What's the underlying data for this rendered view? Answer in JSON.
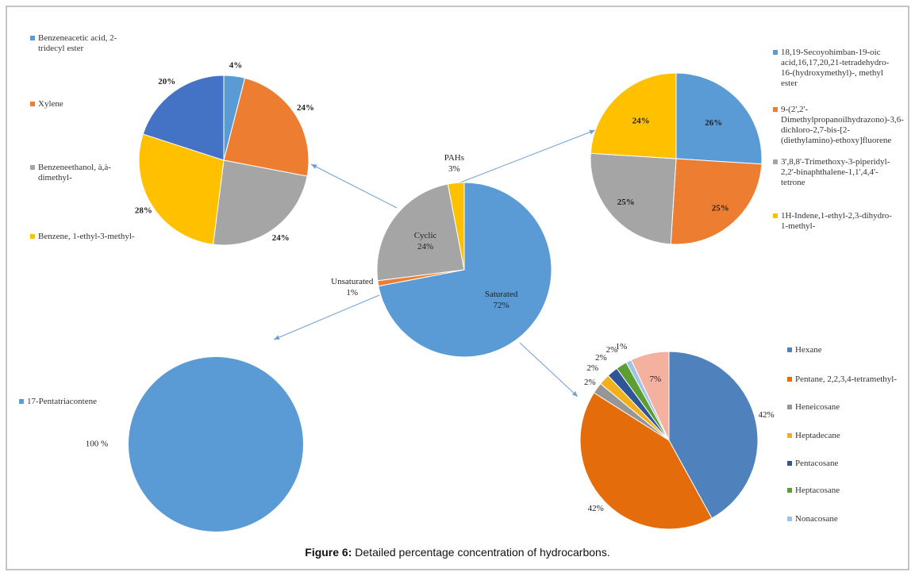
{
  "chart_data": [
    {
      "type": "pie",
      "categories": [
        "Benzeneacetic acid, 2-tridecyl ester",
        "Xylene",
        "Benzeneethanol, à,à-dimethyl-",
        "Benzene, 1-ethyl-3-methyl-",
        null
      ],
      "values": [
        4,
        24,
        24,
        28,
        20
      ],
      "value_labels": [
        "4%",
        "24%",
        "24%",
        "28%",
        "20%"
      ],
      "colors": [
        "#5b9bd5",
        "#ed7d31",
        "#a5a5a5",
        "#ffc000",
        "#4472c4"
      ]
    },
    {
      "type": "pie",
      "categories": [
        "Saturated",
        "Unsaturated",
        "Cyclic",
        "PAHs"
      ],
      "values": [
        72,
        1,
        24,
        3
      ],
      "value_labels": [
        "72%",
        "1%",
        "24%",
        "3%"
      ],
      "colors": [
        "#5b9bd5",
        "#ed7d31",
        "#a5a5a5",
        "#ffc000"
      ]
    },
    {
      "type": "pie",
      "categories": [
        "18,19-Secoyohimban-19-oic acid,16,17,20,21-tetradehydro-16-(hydroxymethyl)-, methyl ester",
        "9-(2',2'-Dimethylpropanoilhydrazono)-3,6-dichloro-2,7-bis-[2-(diethylamino)-ethoxy]fluorene",
        "3',8,8'-Trimethoxy-3-piperidyl-2,2'-binaphthalene-1,1',4,4'-tetrone",
        "1H-Indene,1-ethyl-2,3-dihydro-1-methyl-"
      ],
      "values": [
        26,
        25,
        25,
        24
      ],
      "value_labels": [
        "26%",
        "25%",
        "25%",
        "24%"
      ],
      "colors": [
        "#5b9bd5",
        "#ed7d31",
        "#a5a5a5",
        "#ffc000"
      ]
    },
    {
      "type": "pie",
      "categories": [
        "17-Pentatriacontene"
      ],
      "values": [
        100
      ],
      "value_labels": [
        "100 %"
      ],
      "colors": [
        "#5b9bd5"
      ]
    },
    {
      "type": "pie",
      "categories": [
        "Hexane",
        "Pentane, 2,2,3,4-tetramethyl-",
        "Heneicosane",
        "Heptadecane",
        "Pentacosane",
        "Heptacosane",
        "Nonacosane",
        null
      ],
      "values": [
        42,
        42,
        2,
        2,
        2,
        2,
        1,
        7
      ],
      "value_labels": [
        "42%",
        "42%",
        "2%",
        "2%",
        "2%",
        "2%",
        "1%",
        "7%"
      ],
      "colors": [
        "#4f81bd",
        "#e46c0a",
        "#969696",
        "#f2b01e",
        "#2f5597",
        "#5c9e31",
        "#9dc3e6",
        "#f4b1a0"
      ]
    }
  ],
  "caption_label": "Figure 6:",
  "caption": " Detailed percentage concentration of hydrocarbons."
}
